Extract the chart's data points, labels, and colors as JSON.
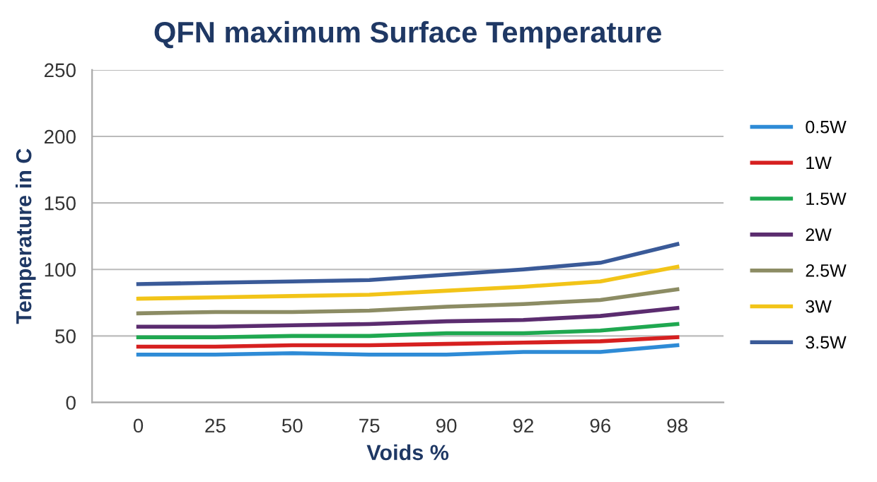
{
  "chart_data": {
    "type": "line",
    "title": "QFN maximum Surface Temperature",
    "xlabel": "Voids %",
    "ylabel": "Temperature in C",
    "categories": [
      "0",
      "25",
      "50",
      "75",
      "90",
      "92",
      "96",
      "98"
    ],
    "ylim": [
      0,
      250
    ],
    "yticks": [
      0,
      50,
      100,
      150,
      200,
      250
    ],
    "grid": "y",
    "legend": "right",
    "series": [
      {
        "name": "0.5W",
        "color": "#2e8bd6",
        "values": [
          36,
          36,
          37,
          36,
          36,
          38,
          38,
          43
        ]
      },
      {
        "name": "1W",
        "color": "#d62020",
        "values": [
          42,
          42,
          43,
          43,
          44,
          45,
          46,
          49
        ]
      },
      {
        "name": "1.5W",
        "color": "#1fa850",
        "values": [
          49,
          49,
          50,
          50,
          52,
          52,
          54,
          59
        ]
      },
      {
        "name": "2W",
        "color": "#5b2c6f",
        "values": [
          57,
          57,
          58,
          59,
          61,
          62,
          65,
          71
        ]
      },
      {
        "name": "2.5W",
        "color": "#8c8c64",
        "values": [
          67,
          68,
          68,
          69,
          72,
          74,
          77,
          85
        ]
      },
      {
        "name": "3W",
        "color": "#f2c418",
        "values": [
          78,
          79,
          80,
          81,
          84,
          87,
          91,
          102
        ]
      },
      {
        "name": "3.5W",
        "color": "#3a5a98",
        "values": [
          89,
          90,
          91,
          92,
          96,
          100,
          105,
          119
        ]
      }
    ]
  }
}
